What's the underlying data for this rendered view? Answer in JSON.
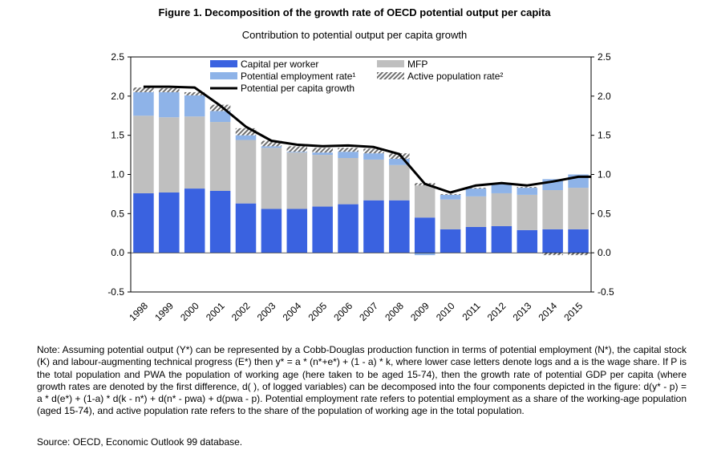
{
  "figure": {
    "title": "Figure 1.  Decomposition of the growth rate of OECD potential output per capita",
    "subtitle": "Contribution to potential output per capita growth",
    "note": "Note: Assuming potential output (Y*) can be represented by a Cobb-Douglas production function in terms of potential employment (N*), the capital stock (K) and labour-augmenting technical progress (E*) then y* = a * (n*+e*) + (1 - a) * k, where lower case letters denote logs and a is the wage share. If P is the total population and PWA the population of working age (here taken to be aged 15-74), then the growth rate of potential GDP per capita (where growth rates are denoted by the first difference, d( ), of logged variables) can be decomposed into the four components depicted in the figure: d(y* - p) = a * d(e*) + (1-a) * d(k - n*) + d(n* - pwa) + d(pwa - p). Potential employment rate refers to potential employment as a share of the working-age population (aged 15-74), and active population rate refers to the share of the population of working age in the total population.",
    "source": "Source: OECD, Economic Outlook 99 database."
  },
  "chart_data": {
    "type": "bar",
    "stacked": true,
    "categories": [
      "1998",
      "1999",
      "2000",
      "2001",
      "2002",
      "2003",
      "2004",
      "2005",
      "2006",
      "2007",
      "2008",
      "2009",
      "2010",
      "2011",
      "2012",
      "2013",
      "2014",
      "2015"
    ],
    "series": [
      {
        "name": "Capital per worker",
        "kind": "bar",
        "color": "#3a62e0",
        "values": [
          0.76,
          0.77,
          0.82,
          0.79,
          0.63,
          0.56,
          0.56,
          0.59,
          0.62,
          0.67,
          0.67,
          0.45,
          0.3,
          0.33,
          0.34,
          0.29,
          0.3,
          0.3
        ]
      },
      {
        "name": "MFP",
        "kind": "bar",
        "color": "#bfbfbf",
        "values": [
          0.99,
          0.96,
          0.92,
          0.88,
          0.81,
          0.78,
          0.72,
          0.66,
          0.59,
          0.52,
          0.45,
          0.41,
          0.38,
          0.39,
          0.42,
          0.45,
          0.5,
          0.53
        ]
      },
      {
        "name": "Potential employment rate¹",
        "kind": "bar",
        "color": "#8eb3e8",
        "values": [
          0.3,
          0.32,
          0.27,
          0.14,
          0.06,
          0.02,
          0.01,
          0.03,
          0.08,
          0.08,
          0.08,
          -0.03,
          0.06,
          0.1,
          0.12,
          0.09,
          0.14,
          0.17
        ]
      },
      {
        "name": "Active population rate²",
        "kind": "bar-hatched",
        "color": "#7f7f7f",
        "values": [
          0.06,
          0.05,
          0.04,
          0.08,
          0.09,
          0.07,
          0.07,
          0.06,
          0.05,
          0.06,
          0.07,
          0.03,
          0.01,
          0.01,
          0.01,
          0.01,
          -0.03,
          -0.03
        ]
      },
      {
        "name": "Potential per capita growth",
        "kind": "line",
        "color": "#000000",
        "values": [
          2.12,
          2.12,
          2.11,
          1.88,
          1.61,
          1.43,
          1.38,
          1.36,
          1.37,
          1.35,
          1.26,
          0.88,
          0.77,
          0.86,
          0.89,
          0.86,
          0.91,
          0.97
        ]
      }
    ],
    "ylim": [
      -0.5,
      2.5
    ],
    "yticks": [
      "-0.5",
      "0.0",
      "0.5",
      "1.0",
      "1.5",
      "2.0",
      "2.5"
    ],
    "ytick_values": [
      -0.5,
      0,
      0.5,
      1,
      1.5,
      2,
      2.5
    ],
    "y2ticks": [
      "-0.5",
      "0.0",
      "0.5",
      "1.0",
      "1.5",
      "2.0",
      "2.5"
    ],
    "grid": false,
    "legend_position": "top-left inside plot"
  }
}
